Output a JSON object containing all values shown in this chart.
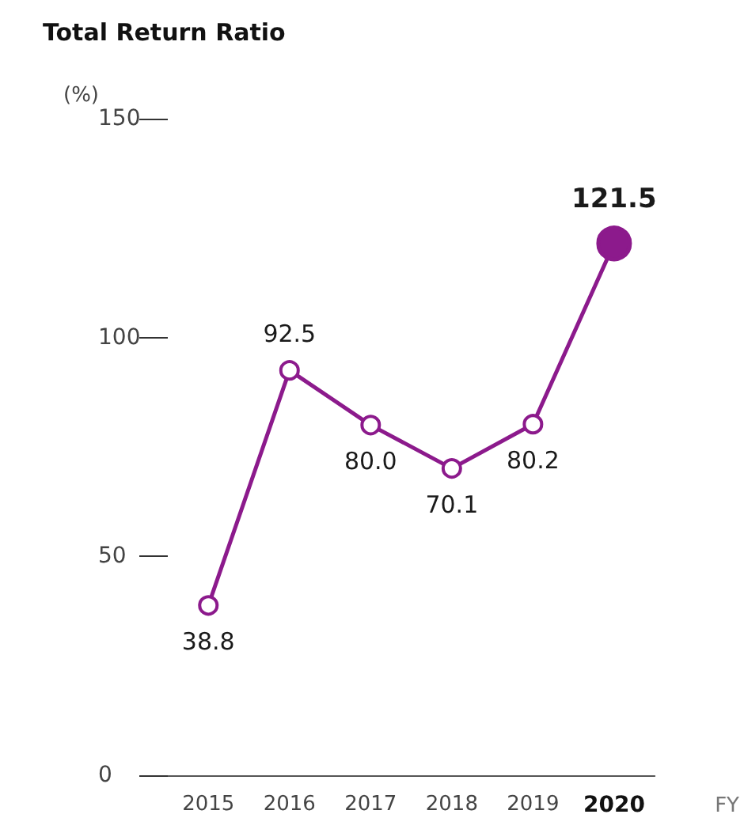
{
  "chart_data": {
    "type": "line",
    "title": "Total Return Ratio",
    "ylabel": "(%)",
    "xlabel": "FY",
    "categories": [
      "2015",
      "2016",
      "2017",
      "2018",
      "2019",
      "2020"
    ],
    "series": [
      {
        "color": "#8c1a8c",
        "values": [
          38.8,
          92.5,
          80.0,
          70.1,
          80.2,
          121.5
        ],
        "value_labels": [
          "38.8",
          "92.5",
          "80.0",
          "70.1",
          "80.2",
          "121.5"
        ]
      }
    ],
    "ylim": [
      0,
      150
    ],
    "yticks": [
      0,
      50,
      100,
      150
    ],
    "marker": "circle",
    "line_style": "solid",
    "grid": false
  }
}
